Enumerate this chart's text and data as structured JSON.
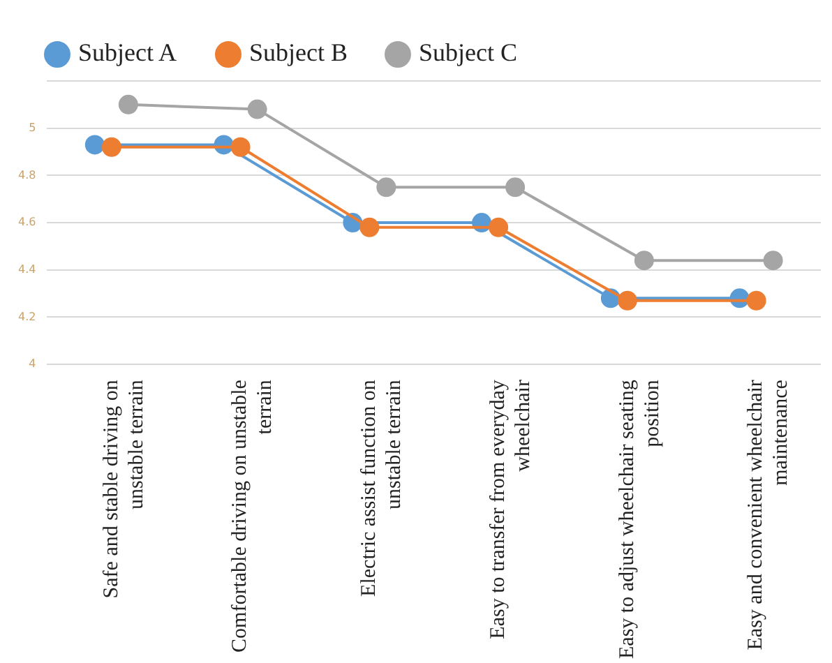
{
  "chart_data": {
    "type": "line",
    "categories": [
      "Safe and stable driving on unstable terrain",
      "Comfortable driving on unstable terrain",
      "Electric assist function on unstable terrain",
      "Easy to transfer from everyday wheelchair",
      "Easy to adjust wheelchair seating position",
      "Easy and convenient wheelchair maintenance"
    ],
    "series": [
      {
        "name": "Subject A",
        "color": "#5b9bd5",
        "values": [
          4.93,
          4.93,
          4.6,
          4.6,
          4.28,
          4.28
        ]
      },
      {
        "name": "Subject B",
        "color": "#ed7d31",
        "values": [
          4.92,
          4.92,
          4.58,
          4.58,
          4.27,
          4.27
        ]
      },
      {
        "name": "Subject C",
        "color": "#a5a5a5",
        "values": [
          5.1,
          5.08,
          4.75,
          4.75,
          4.44,
          4.44
        ]
      }
    ],
    "ylim": [
      4,
      5.2
    ],
    "yticks": [
      4,
      4.2,
      4.4,
      4.6,
      4.8,
      5,
      {
        "value": 5.2,
        "label": null
      }
    ],
    "grid": "y",
    "legend": "top",
    "marker": "circle"
  }
}
